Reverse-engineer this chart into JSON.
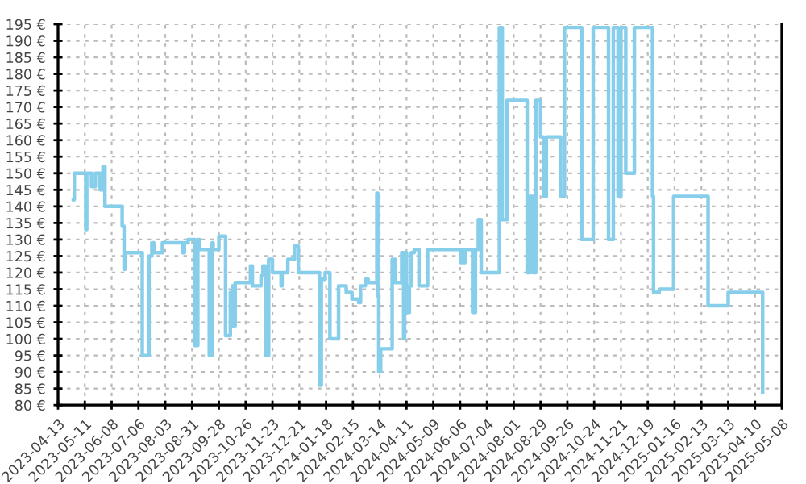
{
  "chart_data": {
    "type": "step",
    "series": [
      {
        "color": "#87ceeb",
        "x": [
          "2023-04-29",
          "2023-04-30",
          "2023-05-12",
          "2023-05-13",
          "2023-05-18",
          "2023-05-22",
          "2023-05-27",
          "2023-05-29",
          "2023-05-30",
          "2023-06-01",
          "2023-06-19",
          "2023-06-21",
          "2023-06-22",
          "2023-07-10",
          "2023-07-17",
          "2023-07-20",
          "2023-07-22",
          "2023-07-31",
          "2023-08-21",
          "2023-08-23",
          "2023-08-27",
          "2023-09-03",
          "2023-09-06",
          "2023-09-08",
          "2023-09-18",
          "2023-09-21",
          "2023-09-22",
          "2023-09-28",
          "2023-10-05",
          "2023-10-10",
          "2023-10-12",
          "2023-10-13",
          "2023-10-15",
          "2023-10-31",
          "2023-11-02",
          "2023-11-11",
          "2023-11-13",
          "2023-11-16",
          "2023-11-19",
          "2023-11-23",
          "2023-12-02",
          "2023-12-03",
          "2023-12-09",
          "2023-12-16",
          "2023-12-20",
          "2024-01-11",
          "2024-01-13",
          "2024-01-17",
          "2024-01-22",
          "2024-01-31",
          "2024-02-08",
          "2024-02-14",
          "2024-02-21",
          "2024-02-23",
          "2024-02-28",
          "2024-03-02",
          "2024-03-11",
          "2024-03-12",
          "2024-03-13",
          "2024-03-15",
          "2024-03-27",
          "2024-03-30",
          "2024-04-06",
          "2024-04-08",
          "2024-04-09",
          "2024-04-11",
          "2024-04-14",
          "2024-04-16",
          "2024-04-19",
          "2024-04-24",
          "2024-05-03",
          "2024-06-07",
          "2024-06-11",
          "2024-06-19",
          "2024-06-22",
          "2024-06-25",
          "2024-06-28",
          "2024-07-17",
          "2024-07-20",
          "2024-07-25",
          "2024-08-15",
          "2024-08-18",
          "2024-08-21",
          "2024-08-24",
          "2024-08-29",
          "2024-09-01",
          "2024-09-04",
          "2024-09-19",
          "2024-09-23",
          "2024-10-11",
          "2024-10-23",
          "2024-11-08",
          "2024-11-13",
          "2024-11-18",
          "2024-11-21",
          "2024-11-26",
          "2024-12-05",
          "2024-12-24",
          "2024-12-25",
          "2024-12-31",
          "2025-01-15",
          "2025-02-20",
          "2025-03-13",
          "2025-04-18"
        ],
        "values": [
          142,
          150,
          133,
          150,
          146,
          150,
          145,
          150,
          152,
          140,
          134,
          121,
          126,
          95,
          125,
          129,
          126,
          129,
          126,
          129,
          130,
          98,
          130,
          127,
          95,
          129,
          127,
          131,
          101,
          114,
          116,
          104,
          117,
          122,
          116,
          119,
          122,
          95,
          124,
          120,
          116,
          120,
          124,
          128,
          120,
          86,
          118,
          120,
          100,
          116,
          114,
          112,
          111,
          116,
          118,
          117,
          144,
          113,
          90,
          97,
          124,
          117,
          126,
          100,
          126,
          108,
          116,
          126,
          127,
          116,
          127,
          123,
          127,
          108,
          127,
          136,
          120,
          194,
          136,
          172,
          120,
          143,
          120,
          172,
          161,
          143,
          161,
          143,
          194,
          130,
          194,
          130,
          194,
          143,
          194,
          150,
          194,
          143,
          114,
          115,
          143,
          110,
          114,
          84
        ]
      }
    ],
    "xlim": [
      "2023-04-13",
      "2025-05-08"
    ],
    "xticks": [
      "2023-04-13",
      "2023-05-11",
      "2023-06-08",
      "2023-07-06",
      "2023-08-03",
      "2023-08-31",
      "2023-09-28",
      "2023-10-26",
      "2023-11-23",
      "2023-12-21",
      "2024-01-18",
      "2024-02-15",
      "2024-03-14",
      "2024-04-11",
      "2024-05-09",
      "2024-06-06",
      "2024-07-04",
      "2024-08-01",
      "2024-08-29",
      "2024-09-26",
      "2024-10-24",
      "2024-11-21",
      "2024-12-19",
      "2025-01-16",
      "2025-02-13",
      "2025-03-13",
      "2025-04-10",
      "2025-05-08"
    ],
    "ylim": [
      80,
      195
    ],
    "yticks": [
      {
        "value": 80,
        "label": "80 €"
      },
      {
        "value": 85,
        "label": "85 €"
      },
      {
        "value": 90,
        "label": "90 €"
      },
      {
        "value": 95,
        "label": "95 €"
      },
      {
        "value": 100,
        "label": "100 €"
      },
      {
        "value": 105,
        "label": "105 €"
      },
      {
        "value": 110,
        "label": "110 €"
      },
      {
        "value": 115,
        "label": "115 €"
      },
      {
        "value": 120,
        "label": "120 €"
      },
      {
        "value": 125,
        "label": "125 €"
      },
      {
        "value": 130,
        "label": "130 €"
      },
      {
        "value": 135,
        "label": "135 €"
      },
      {
        "value": 140,
        "label": "140 €"
      },
      {
        "value": 145,
        "label": "145 €"
      },
      {
        "value": 150,
        "label": "150 €"
      },
      {
        "value": 155,
        "label": "155 €"
      },
      {
        "value": 160,
        "label": "160 €"
      },
      {
        "value": 165,
        "label": "165 €"
      },
      {
        "value": 170,
        "label": "170 €"
      },
      {
        "value": 175,
        "label": "175 €"
      },
      {
        "value": 180,
        "label": "180 €"
      },
      {
        "value": 185,
        "label": "185 €"
      },
      {
        "value": 190,
        "label": "190 €"
      },
      {
        "value": 195,
        "label": "195 €"
      }
    ],
    "grid": true,
    "line_style": "solid"
  }
}
